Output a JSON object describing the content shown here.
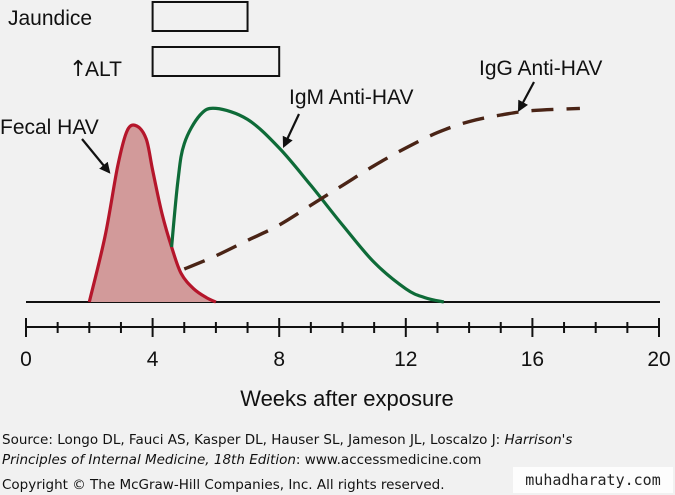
{
  "chart_data": {
    "type": "line",
    "xlabel": "Weeks after exposure",
    "xticks": [
      0,
      4,
      8,
      12,
      16,
      20
    ],
    "xlim": [
      0,
      20
    ],
    "ylim": [
      0,
      1
    ],
    "series": [
      {
        "name": "Fecal HAV",
        "style": "filled",
        "color": "#b5162b",
        "x": [
          2.0,
          2.5,
          2.9,
          3.2,
          3.5,
          3.8,
          4.0,
          4.3,
          4.6,
          4.9,
          5.3,
          5.7,
          6.0
        ],
        "y": [
          0.0,
          0.3,
          0.62,
          0.78,
          0.8,
          0.74,
          0.6,
          0.4,
          0.25,
          0.13,
          0.06,
          0.02,
          0.0
        ]
      },
      {
        "name": "IgM Anti-HAV",
        "style": "solid",
        "color": "#0e6b38",
        "x": [
          4.6,
          4.8,
          5.0,
          5.5,
          6.0,
          7.0,
          8.0,
          9.0,
          10.0,
          11.0,
          12.0,
          12.6,
          13.2
        ],
        "y": [
          0.25,
          0.55,
          0.72,
          0.85,
          0.88,
          0.83,
          0.7,
          0.53,
          0.35,
          0.18,
          0.06,
          0.02,
          0.0
        ]
      },
      {
        "name": "IgG Anti-HAV",
        "style": "dashed",
        "color": "#4a2416",
        "x": [
          5.0,
          6.0,
          7.0,
          8.0,
          9.0,
          10.0,
          11.0,
          12.0,
          13.0,
          14.0,
          15.0,
          16.0,
          17.5
        ],
        "y": [
          0.15,
          0.21,
          0.28,
          0.35,
          0.44,
          0.53,
          0.62,
          0.7,
          0.77,
          0.82,
          0.85,
          0.87,
          0.88
        ]
      }
    ],
    "bars": [
      {
        "label": "Jaundice",
        "start": 4.0,
        "end": 7.0
      },
      {
        "label": "ALT",
        "arrow": "↑",
        "start": 4.0,
        "end": 8.0
      }
    ],
    "annotations": [
      "Fecal HAV",
      "IgM Anti-HAV",
      "IgG Anti-HAV"
    ]
  },
  "source_line1": "Source: Longo DL, Fauci AS, Kasper DL, Hauser SL, Jameson JL, Loscalzo J: ",
  "source_title1": "Harrison's",
  "source_title2": "Principles of Internal Medicine, 18th Edition",
  "source_line2_tail": ": www.accessmedicine.com",
  "copyright": "Copyright © The McGraw-Hill Companies, Inc. All rights reserved.",
  "watermark": "muhadharaty.com"
}
